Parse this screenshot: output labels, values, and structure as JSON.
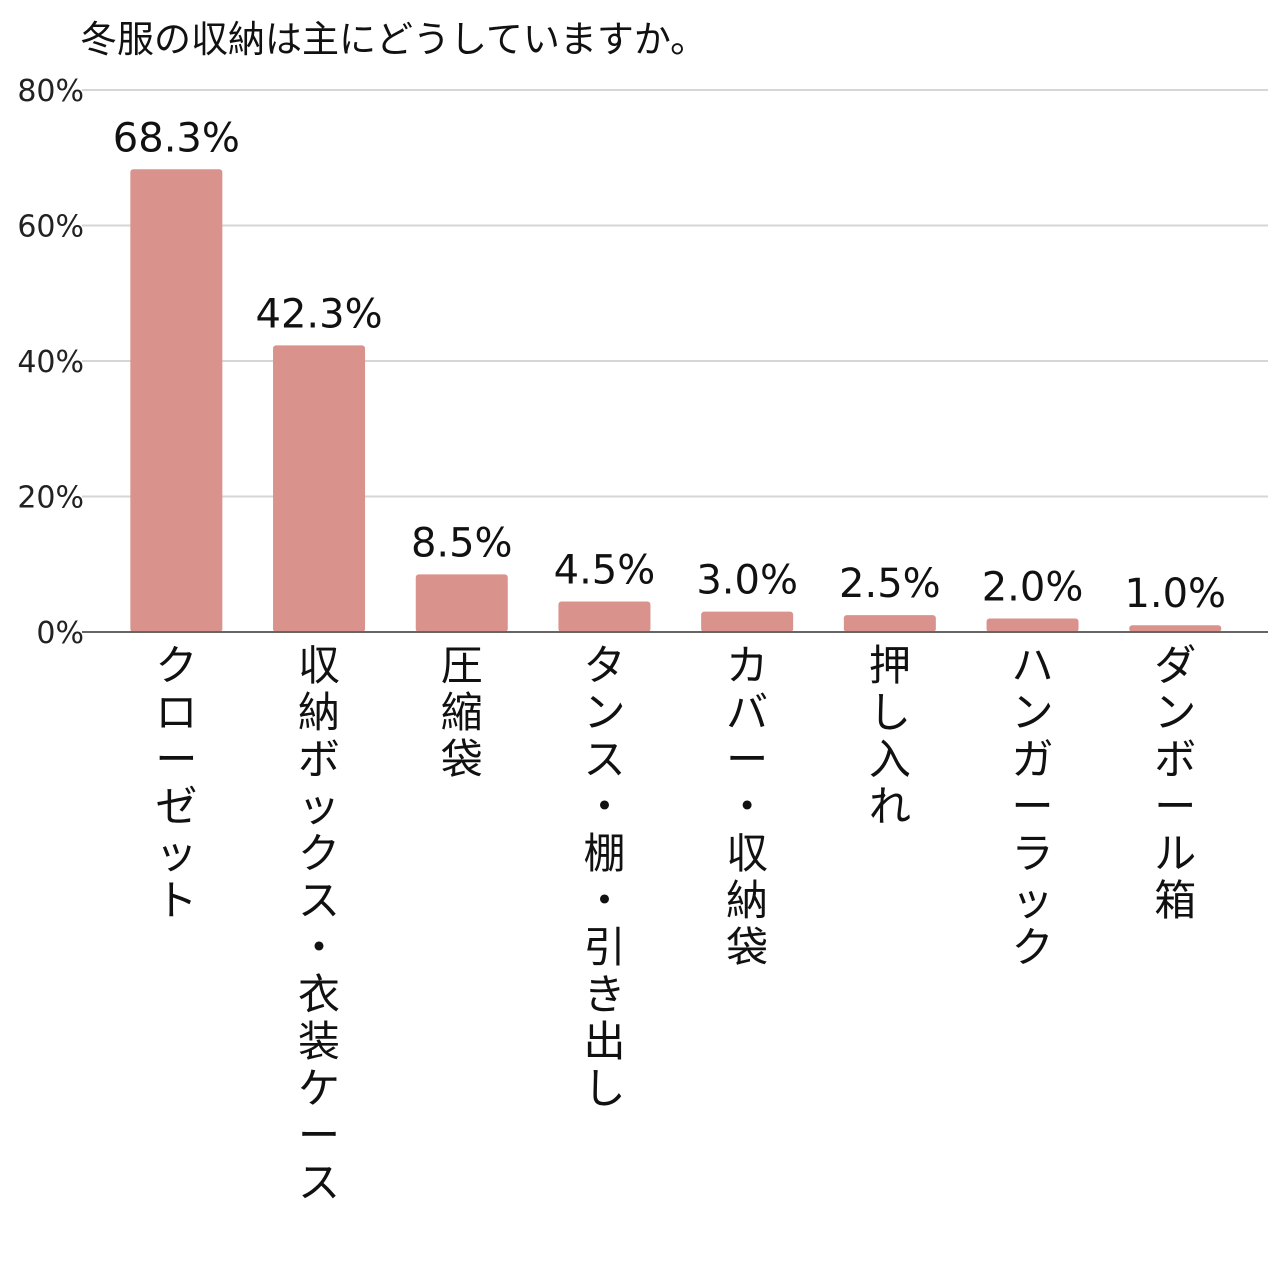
{
  "chart_data": {
    "type": "bar",
    "title": "冬服の収納は主にどうしていますか。",
    "xlabel": "",
    "ylabel": "",
    "categories": [
      "クローゼット",
      "収納ボックス・衣装ケース",
      "圧縮袋",
      "タンス・棚・引き出し",
      "カバー・収納袋",
      "押し入れ",
      "ハンガーラック",
      "ダンボール箱"
    ],
    "values": [
      68.3,
      42.3,
      8.5,
      4.5,
      3.0,
      2.5,
      2.0,
      1.0
    ],
    "value_labels": [
      "68.3%",
      "42.3%",
      "8.5%",
      "4.5%",
      "3.0%",
      "2.5%",
      "2.0%",
      "1.0%"
    ],
    "ylim": [
      0,
      80
    ],
    "yticks": [
      0,
      20,
      40,
      60,
      80
    ],
    "ytick_labels": [
      "0%",
      "20%",
      "40%",
      "60%",
      "80%"
    ],
    "grid": true,
    "legend": "none",
    "colors": {
      "bar": "#d9928c",
      "grid": "#d6d6d6",
      "axis": "#666666"
    }
  }
}
